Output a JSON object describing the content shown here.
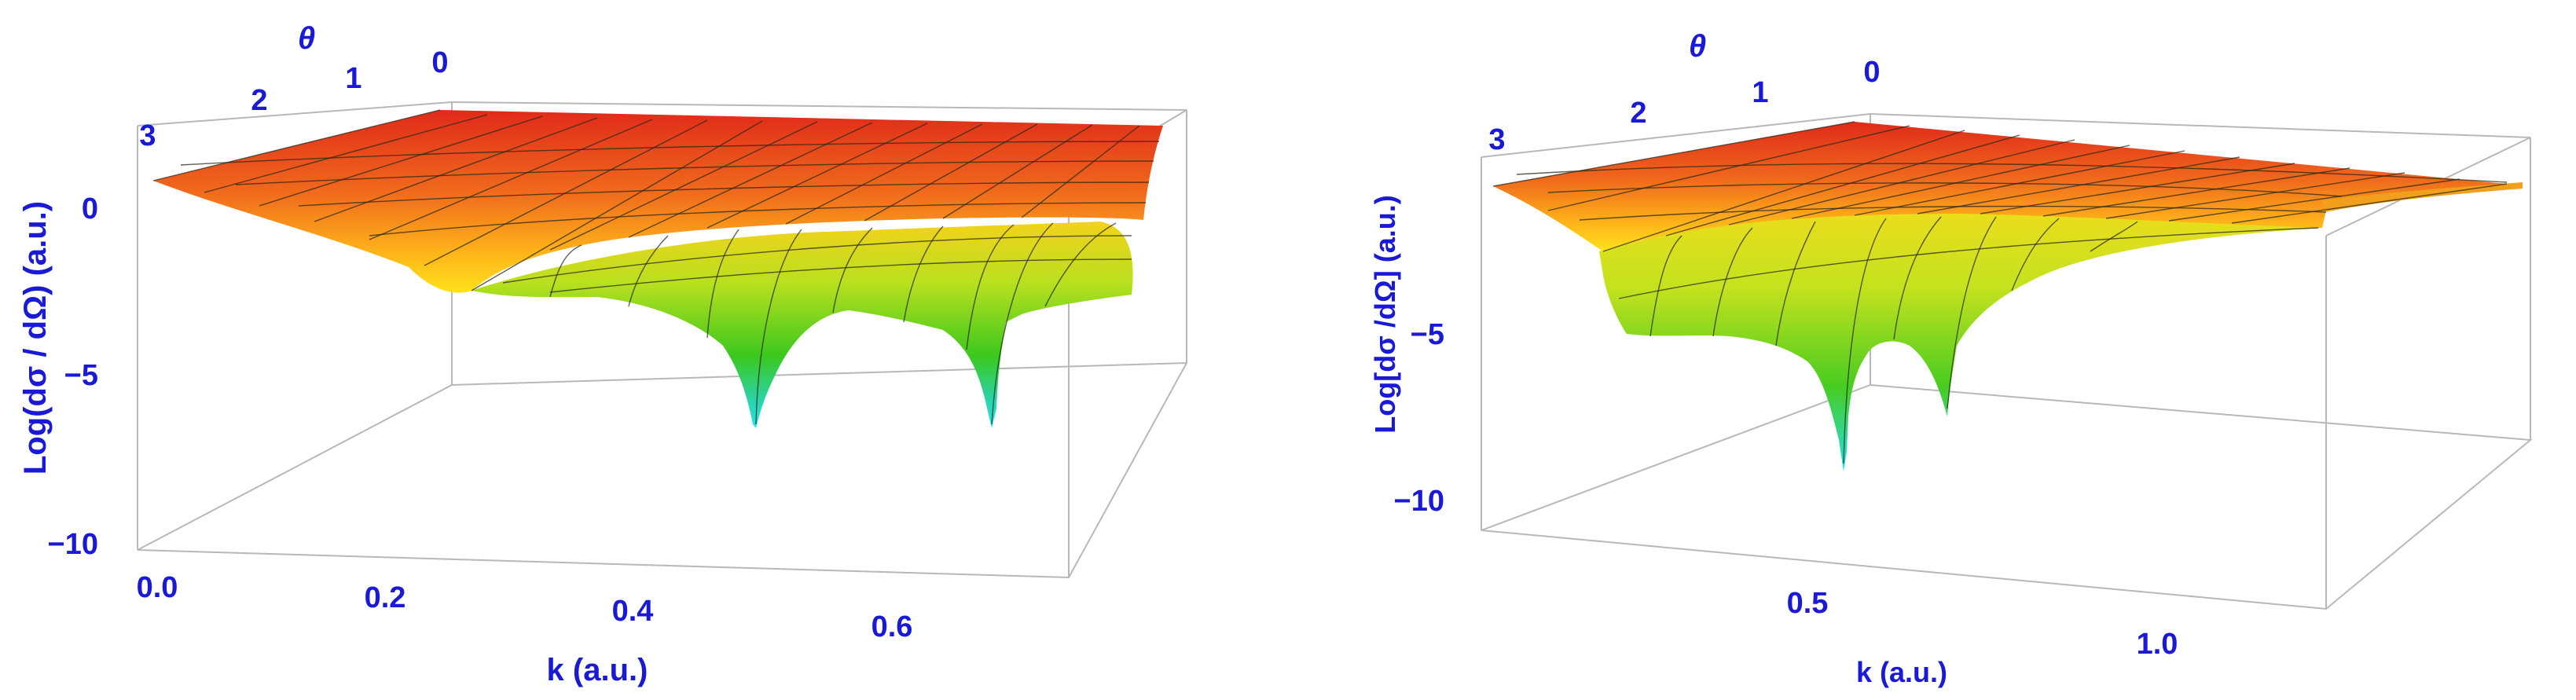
{
  "colors": {
    "label": "#1a1ad6",
    "surface_high": "#e8321e",
    "surface_mid": "#ffd21a",
    "surface_low": "#3ad21e",
    "surface_min": "#22d8e8",
    "box": "#b8b8b8"
  },
  "chart_data": [
    {
      "type": "surface3d",
      "xlabel": "k (a.u.)",
      "ylabel": "θ",
      "zlabel": "Log(dσ / dΩ) (a.u.)",
      "x_ticks": [
        "0.0",
        "0.2",
        "0.4",
        "0.6"
      ],
      "y_ticks": [
        "0",
        "1",
        "2",
        "3"
      ],
      "z_ticks": [
        "0",
        "−5",
        "−10"
      ],
      "xlim": [
        0,
        0.75
      ],
      "ylim": [
        0,
        3.14
      ],
      "zlim": [
        -10,
        1.5
      ],
      "surface_features": {
        "plateau_level": 0.8,
        "dips_at_k": [
          0.48,
          0.66
        ],
        "dip_depth": -6.2
      }
    },
    {
      "type": "surface3d",
      "xlabel": "k (a.u.)",
      "ylabel": "θ",
      "zlabel": "Log[dσ /dΩ] (a.u.)",
      "x_ticks": [
        "0.5",
        "1.0"
      ],
      "y_ticks": [
        "0",
        "1",
        "2",
        "3"
      ],
      "z_ticks": [
        "−5",
        "−10"
      ],
      "xlim": [
        0.1,
        1.2
      ],
      "ylim": [
        0,
        3.14
      ],
      "zlim": [
        -11,
        1
      ],
      "surface_features": {
        "plateau_level": 0.3,
        "dips_at_k": [
          0.55,
          0.68
        ],
        "dip_depth": -8.5
      }
    }
  ]
}
